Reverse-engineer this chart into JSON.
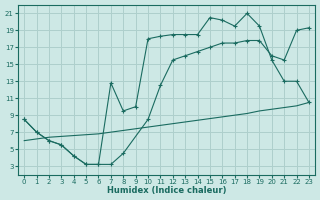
{
  "xlabel": "Humidex (Indice chaleur)",
  "bg_color": "#cde8e5",
  "grid_color": "#aecfcc",
  "line_color": "#1a6b60",
  "xlim": [
    -0.5,
    23.5
  ],
  "ylim": [
    2,
    22
  ],
  "xticks": [
    0,
    1,
    2,
    3,
    4,
    5,
    6,
    7,
    8,
    9,
    10,
    11,
    12,
    13,
    14,
    15,
    16,
    17,
    18,
    19,
    20,
    21,
    22,
    23
  ],
  "yticks": [
    3,
    5,
    7,
    9,
    11,
    13,
    15,
    17,
    19,
    21
  ],
  "line1_x": [
    0,
    1,
    2,
    3,
    4,
    5,
    6,
    7,
    8,
    10,
    11,
    12,
    13,
    14,
    15,
    16,
    17,
    18,
    19,
    20,
    21,
    22,
    23
  ],
  "line1_y": [
    8.5,
    7.0,
    6.0,
    5.5,
    4.2,
    3.2,
    3.2,
    3.2,
    4.5,
    8.5,
    12.5,
    15.5,
    16.0,
    16.5,
    17.0,
    17.5,
    17.5,
    17.8,
    17.8,
    16.0,
    15.5,
    19.0,
    19.3
  ],
  "line2_x": [
    0,
    1,
    2,
    3,
    4,
    5,
    6,
    7,
    8,
    9,
    10,
    11,
    12,
    13,
    14,
    15,
    16,
    17,
    18,
    19,
    20,
    21,
    22,
    23
  ],
  "line2_y": [
    8.5,
    7.0,
    6.0,
    5.5,
    4.2,
    3.2,
    3.2,
    12.8,
    9.5,
    10.0,
    18.0,
    18.3,
    18.5,
    18.5,
    18.5,
    20.5,
    20.2,
    19.5,
    21.0,
    19.5,
    15.5,
    13.0,
    13.0,
    10.5
  ],
  "line3_x": [
    0,
    1,
    2,
    3,
    4,
    5,
    6,
    7,
    8,
    9,
    10,
    11,
    12,
    13,
    14,
    15,
    16,
    17,
    18,
    19,
    20,
    21,
    22,
    23
  ],
  "line3_y": [
    6.0,
    6.2,
    6.4,
    6.5,
    6.6,
    6.7,
    6.8,
    7.0,
    7.2,
    7.4,
    7.6,
    7.8,
    8.0,
    8.2,
    8.4,
    8.6,
    8.8,
    9.0,
    9.2,
    9.5,
    9.7,
    9.9,
    10.1,
    10.5
  ]
}
